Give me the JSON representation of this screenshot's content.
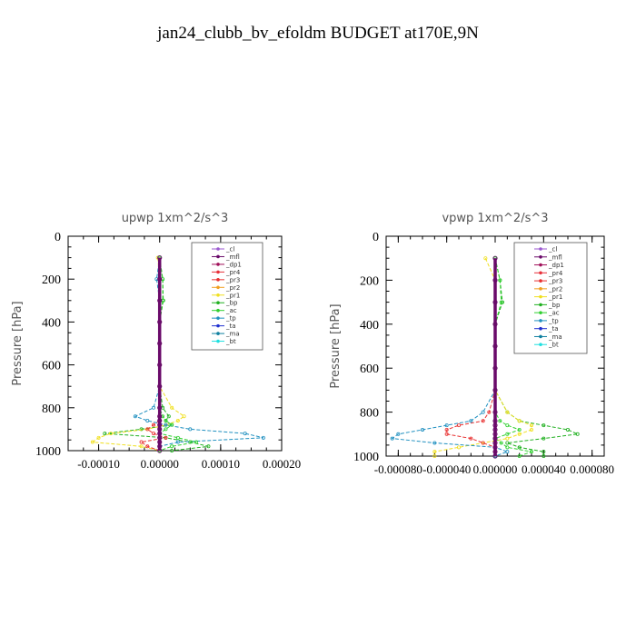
{
  "title": "jan24_clubb_bv_efoldm  BUDGET at170E,9N",
  "legend_entries": [
    "_cl",
    "_mfl",
    "_dp1",
    "_pr4",
    "_pr3",
    "_pr2",
    "_pr1",
    "_bp",
    "_ac",
    "_tp",
    "_ta",
    "_ma",
    "_bt"
  ],
  "series_colors": {
    "_cl": "#9b59d0",
    "_mfl": "#6a0a6a",
    "_dp1": "#a0105a",
    "_pr4": "#e8303a",
    "_pr3": "#e83030",
    "_pr2": "#f0a020",
    "_pr1": "#f0e020",
    "_bp": "#20b020",
    "_ac": "#30d030",
    "_tp": "#2090c0",
    "_ta": "#2030d0",
    "_ma": "#1080a0",
    "_bt": "#20e0e0"
  },
  "chart_data": [
    {
      "type": "line",
      "title": "upwp   1xm^2/s^3",
      "ylabel": "Pressure [hPa]",
      "ylim": [
        1000,
        0
      ],
      "y_ticks": [
        "0",
        "200",
        "400",
        "600",
        "800",
        "1000"
      ],
      "x_ticks": [
        "-0.00010",
        "0.00000",
        "0.00010",
        "0.00020"
      ],
      "xlim": [
        -0.00015,
        0.0002
      ],
      "legend_placement": "top-right",
      "pressure_levels": [
        100,
        200,
        300,
        400,
        500,
        600,
        700,
        800,
        840,
        860,
        880,
        900,
        920,
        940,
        960,
        980,
        1000
      ],
      "series": [
        {
          "name": "_bp",
          "values": [
            0,
            5e-06,
            6e-06,
            0,
            0,
            0,
            0,
            5e-06,
            1.5e-05,
            1e-05,
            2e-05,
            -3e-05,
            -9e-05,
            1e-05,
            5e-05,
            8e-05,
            2e-05
          ]
        },
        {
          "name": "_pr1",
          "values": [
            -3e-06,
            0,
            0,
            0,
            0,
            0,
            0,
            2e-05,
            4e-05,
            3e-05,
            1e-05,
            -2e-05,
            -8e-05,
            -0.0001,
            -0.00011,
            -3e-05,
            0
          ]
        },
        {
          "name": "_pr3",
          "values": [
            0,
            0,
            0,
            0,
            0,
            0,
            0,
            0,
            0,
            0,
            -1e-05,
            -2e-05,
            -1e-05,
            1e-05,
            -3e-05,
            -2e-05,
            0
          ]
        },
        {
          "name": "_tp",
          "values": [
            0,
            -5e-06,
            0,
            0,
            0,
            0,
            0,
            -1e-05,
            -4e-05,
            -2e-05,
            1e-05,
            5e-05,
            0.00014,
            0.00017,
            3e-05,
            0,
            0
          ]
        },
        {
          "name": "_ac",
          "values": [
            0,
            5e-06,
            5e-06,
            0,
            0,
            0,
            0,
            0,
            5e-06,
            1e-05,
            2e-05,
            1e-05,
            0,
            3e-05,
            6e-05,
            2e-05,
            0
          ]
        },
        {
          "name": "_mfl",
          "values": [
            0,
            0,
            0,
            0,
            0,
            0,
            0,
            0,
            0,
            0,
            0,
            0,
            0,
            0,
            0,
            0,
            0
          ]
        }
      ]
    },
    {
      "type": "line",
      "title": "vpwp   1xm^2/s^3",
      "ylabel": "Pressure [hPa]",
      "ylim": [
        1000,
        0
      ],
      "y_ticks": [
        "0",
        "200",
        "400",
        "600",
        "800",
        "1000"
      ],
      "x_ticks": [
        "-0.000080",
        "-0.000040",
        "0.000000",
        "0.000040",
        "0.000080"
      ],
      "xlim": [
        -9e-05,
        9e-05
      ],
      "legend_placement": "top-right",
      "pressure_levels": [
        100,
        200,
        300,
        400,
        500,
        600,
        700,
        800,
        840,
        860,
        880,
        900,
        920,
        940,
        960,
        980,
        1000
      ],
      "series": [
        {
          "name": "_bp",
          "values": [
            0,
            4e-06,
            6e-06,
            0,
            0,
            0,
            0,
            1e-05,
            2e-05,
            4e-05,
            6e-05,
            6.8e-05,
            4e-05,
            1e-05,
            2e-05,
            4e-05,
            4e-05
          ]
        },
        {
          "name": "_pr1",
          "values": [
            -8e-06,
            0,
            0,
            0,
            0,
            0,
            0,
            1e-05,
            2e-05,
            3e-05,
            3e-05,
            2e-05,
            1e-05,
            -1e-05,
            -3e-05,
            -5e-05,
            -5e-05
          ]
        },
        {
          "name": "_pr3",
          "values": [
            0,
            0,
            0,
            0,
            0,
            0,
            0,
            -5e-06,
            -1e-05,
            -3e-05,
            -4e-05,
            -4e-05,
            -2e-05,
            -1e-05,
            0,
            0,
            0
          ]
        },
        {
          "name": "_tp",
          "values": [
            0,
            0,
            0,
            0,
            0,
            0,
            0,
            -1e-05,
            -2e-05,
            -4e-05,
            -6e-05,
            -8e-05,
            -8.5e-05,
            -5e-05,
            0,
            1e-05,
            0
          ]
        },
        {
          "name": "_ac",
          "values": [
            0,
            4e-06,
            5e-06,
            0,
            0,
            0,
            0,
            0,
            4e-06,
            1e-05,
            2e-05,
            1e-05,
            0,
            5e-06,
            1e-05,
            3e-05,
            2e-05
          ]
        },
        {
          "name": "_mfl",
          "values": [
            0,
            0,
            0,
            0,
            0,
            0,
            0,
            0,
            0,
            0,
            0,
            0,
            0,
            0,
            0,
            0,
            0
          ]
        }
      ]
    }
  ]
}
